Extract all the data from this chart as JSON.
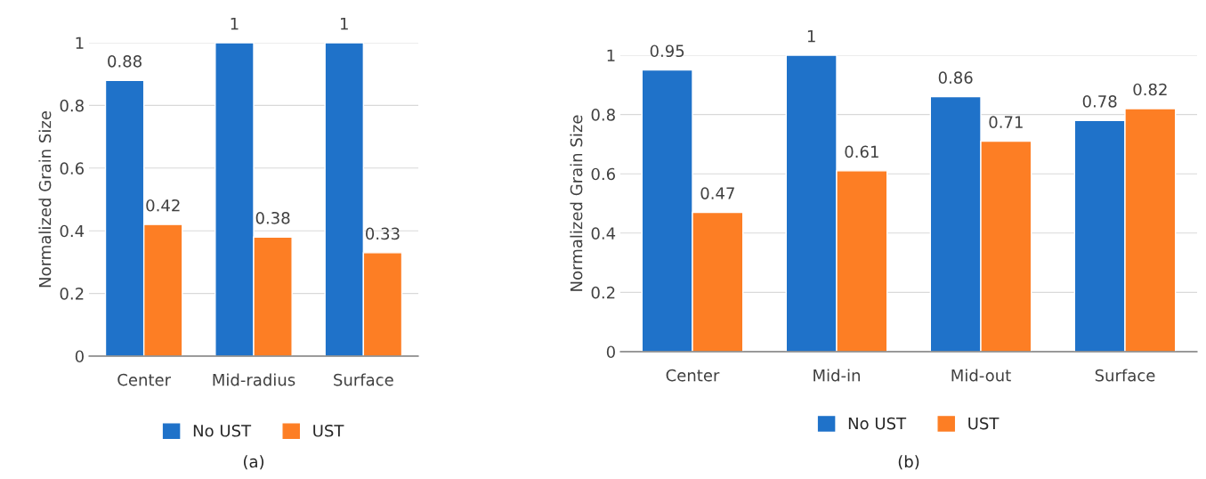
{
  "chart_data": [
    {
      "type": "bar",
      "ylabel": "Normalized Grain Size",
      "categories": [
        "Center",
        "Mid-radius",
        "Surface"
      ],
      "series": [
        {
          "name": "No UST",
          "color": "#1f72c9",
          "values": [
            0.88,
            1,
            1
          ]
        },
        {
          "name": "UST",
          "color": "#fd7e24",
          "values": [
            0.42,
            0.38,
            0.33
          ]
        }
      ],
      "ylim": [
        0,
        1
      ],
      "yticks": [
        0,
        0.2,
        0.4,
        0.6,
        0.8,
        1
      ],
      "grid": "y",
      "legend": "bottom",
      "data_labels": true,
      "annotations": [
        "(a)"
      ]
    },
    {
      "type": "bar",
      "ylabel": "Normalized Grain Size",
      "categories": [
        "Center",
        "Mid-in",
        "Mid-out",
        "Surface"
      ],
      "series": [
        {
          "name": "No UST",
          "color": "#1f72c9",
          "values": [
            0.95,
            1,
            0.86,
            0.78
          ]
        },
        {
          "name": "UST",
          "color": "#fd7e24",
          "values": [
            0.47,
            0.61,
            0.71,
            0.82
          ]
        }
      ],
      "ylim": [
        0,
        1
      ],
      "yticks": [
        0,
        0.2,
        0.4,
        0.6,
        0.8,
        1
      ],
      "grid": "y",
      "legend": "bottom",
      "data_labels": true,
      "annotations": [
        "(b)"
      ]
    }
  ]
}
